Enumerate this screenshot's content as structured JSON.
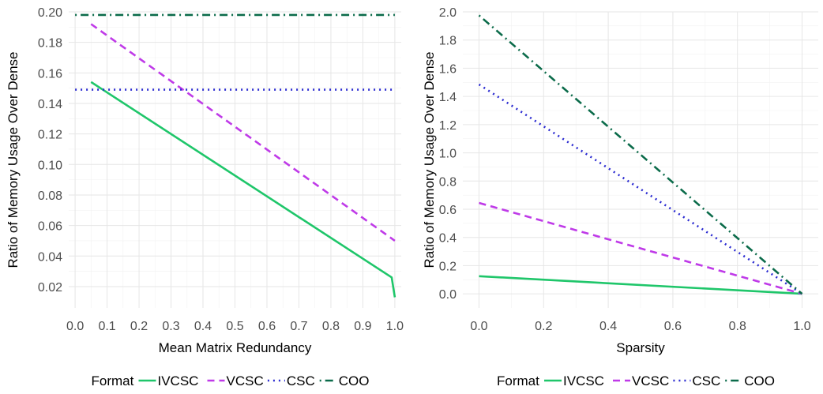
{
  "chart_data": [
    {
      "type": "line",
      "title": "",
      "xlabel": "Mean Matrix Redundancy",
      "ylabel": "Ratio of  Memory Usage Over Dense",
      "xlim": [
        -0.02,
        1.02
      ],
      "ylim": [
        0.006,
        0.2
      ],
      "x_ticks": [
        0.0,
        0.1,
        0.2,
        0.3,
        0.4,
        0.5,
        0.6,
        0.7,
        0.8,
        0.9,
        1.0
      ],
      "x_tick_labels": [
        "0.0",
        "0.1",
        "0.2",
        "0.3",
        "0.4",
        "0.5",
        "0.6",
        "0.7",
        "0.8",
        "0.9",
        "1.0"
      ],
      "y_ticks": [
        0.02,
        0.04,
        0.06,
        0.08,
        0.1,
        0.12,
        0.14,
        0.16,
        0.18,
        0.2
      ],
      "y_tick_labels": [
        "0.02",
        "0.04",
        "0.06",
        "0.08",
        "0.10",
        "0.12",
        "0.14",
        "0.16",
        "0.18",
        "0.20"
      ],
      "grid": true,
      "series": [
        {
          "name": "IVCSC",
          "x": [
            0.05,
            0.99,
            1.0
          ],
          "y": [
            0.154,
            0.026,
            0.013
          ]
        },
        {
          "name": "VCSC",
          "x": [
            0.05,
            1.0
          ],
          "y": [
            0.192,
            0.05
          ]
        },
        {
          "name": "CSC",
          "x": [
            0.0,
            1.0
          ],
          "y": [
            0.149,
            0.149
          ]
        },
        {
          "name": "COO",
          "x": [
            0.0,
            1.0
          ],
          "y": [
            0.198,
            0.198
          ]
        }
      ]
    },
    {
      "type": "line",
      "title": "",
      "xlabel": "Sparsity",
      "ylabel": "Ratio of  Memory Usage Over Dense",
      "xlim": [
        -0.05,
        1.05
      ],
      "ylim": [
        -0.1,
        2.0
      ],
      "x_ticks": [
        0.0,
        0.2,
        0.4,
        0.6,
        0.8,
        1.0
      ],
      "x_tick_labels": [
        "0.0",
        "0.2",
        "0.4",
        "0.6",
        "0.8",
        "1.0"
      ],
      "y_ticks": [
        0.0,
        0.2,
        0.4,
        0.6,
        0.8,
        1.0,
        1.2,
        1.4,
        1.6,
        1.8,
        2.0
      ],
      "y_tick_labels": [
        "0.0",
        "0.2",
        "0.4",
        "0.6",
        "0.8",
        "1.0",
        "1.2",
        "1.4",
        "1.6",
        "1.8",
        "2.0"
      ],
      "grid": true,
      "series": [
        {
          "name": "IVCSC",
          "x": [
            0.0,
            1.0
          ],
          "y": [
            0.125,
            0.0
          ]
        },
        {
          "name": "VCSC",
          "x": [
            0.0,
            1.0
          ],
          "y": [
            0.645,
            0.0
          ]
        },
        {
          "name": "CSC",
          "x": [
            0.0,
            1.0
          ],
          "y": [
            1.485,
            0.0
          ]
        },
        {
          "name": "COO",
          "x": [
            0.0,
            1.0
          ],
          "y": [
            1.975,
            0.0
          ]
        }
      ]
    }
  ],
  "legend": {
    "title": "Format",
    "placement": "bottom",
    "entries": [
      "IVCSC",
      "VCSC",
      "CSC",
      "COO"
    ]
  },
  "series_styles": {
    "IVCSC": {
      "color": "#1fc66a",
      "dash": "solid"
    },
    "VCSC": {
      "color": "#bf3ae8",
      "dash": "dashed"
    },
    "CSC": {
      "color": "#2b2bd1",
      "dash": "dotted"
    },
    "COO": {
      "color": "#0b6b4a",
      "dash": "dotdash"
    }
  }
}
